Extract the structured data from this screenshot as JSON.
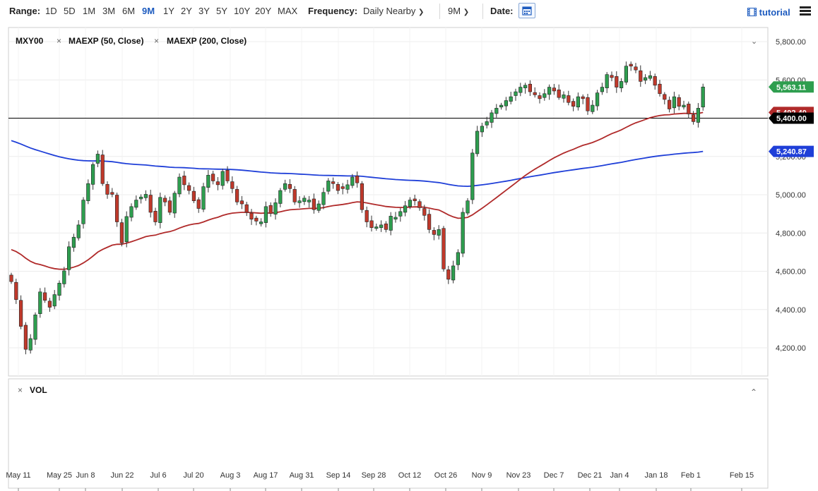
{
  "toolbar": {
    "range_label": "Range:",
    "ranges": [
      "1D",
      "5D",
      "1M",
      "3M",
      "6M",
      "9M",
      "1Y",
      "2Y",
      "3Y",
      "5Y",
      "10Y",
      "20Y",
      "MAX"
    ],
    "active_range": "9M",
    "frequency_label": "Frequency:",
    "frequency_value": "Daily Nearby",
    "period_value": "9M",
    "date_label": "Date:",
    "tutorial_label": "tutorial",
    "calendar_icon": "calendar-icon",
    "menu_icon": "hamburger-icon"
  },
  "legend": {
    "symbol": "MXY00",
    "studies": [
      "MAEXP (50, Close)",
      "MAEXP (200, Close)"
    ],
    "volume_label": "VOL"
  },
  "colors": {
    "up": "#2e9e4f",
    "down": "#c0392b",
    "ma50": "#b02a2a",
    "ma200": "#1f3fd8",
    "last_price_badge": "#2e9e4f",
    "ma50_badge": "#b02a2a",
    "ma200_badge": "#1f3fd8",
    "hline_badge": "#000000"
  },
  "chart_data": {
    "type": "candlestick",
    "x_tick_labels": [
      "May 11",
      "May 25",
      "Jun 8",
      "Jun 22",
      "Jul 6",
      "Jul 20",
      "Aug 3",
      "Aug 17",
      "Aug 31",
      "Sep 14",
      "Sep 28",
      "Oct 12",
      "Oct 26",
      "Nov 9",
      "Nov 23",
      "Dec 7",
      "Dec 21",
      "Jan 4",
      "Jan 18",
      "Feb 1",
      "Feb 15"
    ],
    "y_ticks": [
      4200,
      4400,
      4600,
      4800,
      5000,
      5200,
      5400,
      5600,
      5800
    ],
    "y_tick_labels": [
      "4,200.00",
      "4,400.00",
      "4,600.00",
      "4,800.00",
      "5,000.00",
      "5,200.00",
      "5,400.00",
      "5,600.00",
      "5,800.00"
    ],
    "ylim": [
      4100,
      5880
    ],
    "grid": true,
    "horizontal_line": {
      "value": 5400.0,
      "label": "5,400.00"
    },
    "badges": {
      "last_price": "5,563.11",
      "ma50": "5,492.40",
      "ma200": "5,240.87"
    },
    "series": [
      {
        "name": "MXY00",
        "style": "candles",
        "close": [
          4546,
          4452,
          4312,
          4192,
          4248,
          4372,
          4492,
          4448,
          4412,
          4478,
          4538,
          4602,
          4728,
          4778,
          4842,
          4972,
          5058,
          5158,
          5212,
          5058,
          5002,
          5002,
          4858,
          4748,
          4886,
          4938,
          4972,
          4988,
          5002,
          4908,
          4858,
          4986,
          4962,
          4908,
          5008,
          5092,
          5052,
          5022,
          4968,
          4928,
          5042,
          5102,
          5072,
          5052,
          5122,
          5072,
          5032,
          4962,
          4952,
          4908,
          4872,
          4862,
          4858,
          4938,
          4902,
          4958,
          5022,
          5058,
          5032,
          4962,
          4968,
          4982,
          4972,
          4922,
          4952,
          5012,
          5072,
          5058,
          5022,
          5032,
          5052,
          5092,
          5062,
          4922,
          4858,
          4828,
          4832,
          4842,
          4818,
          4888,
          4882,
          4912,
          4942,
          4972,
          4968,
          4932,
          4892,
          4818,
          4792,
          4818,
          4612,
          4558,
          4628,
          4698,
          4908,
          4968,
          5218,
          5332,
          5358,
          5382,
          5428,
          5452,
          5468,
          5492,
          5512,
          5538,
          5562,
          5572,
          5538,
          5522,
          5502,
          5528,
          5562,
          5542,
          5508,
          5522,
          5482,
          5462,
          5512,
          5502,
          5438,
          5468,
          5532,
          5562,
          5628,
          5612,
          5562,
          5592,
          5672,
          5672,
          5652,
          5592,
          5612,
          5622,
          5572,
          5528,
          5498,
          5448,
          5512,
          5462,
          5468,
          5422,
          5382,
          5452,
          5563
        ],
        "open_first": 4574
      },
      {
        "name": "MAEXP (50, Close)",
        "style": "line",
        "values_per_step_end": 5492.4
      },
      {
        "name": "MAEXP (200, Close)",
        "style": "line",
        "values_per_step_end": 5240.87
      }
    ]
  }
}
